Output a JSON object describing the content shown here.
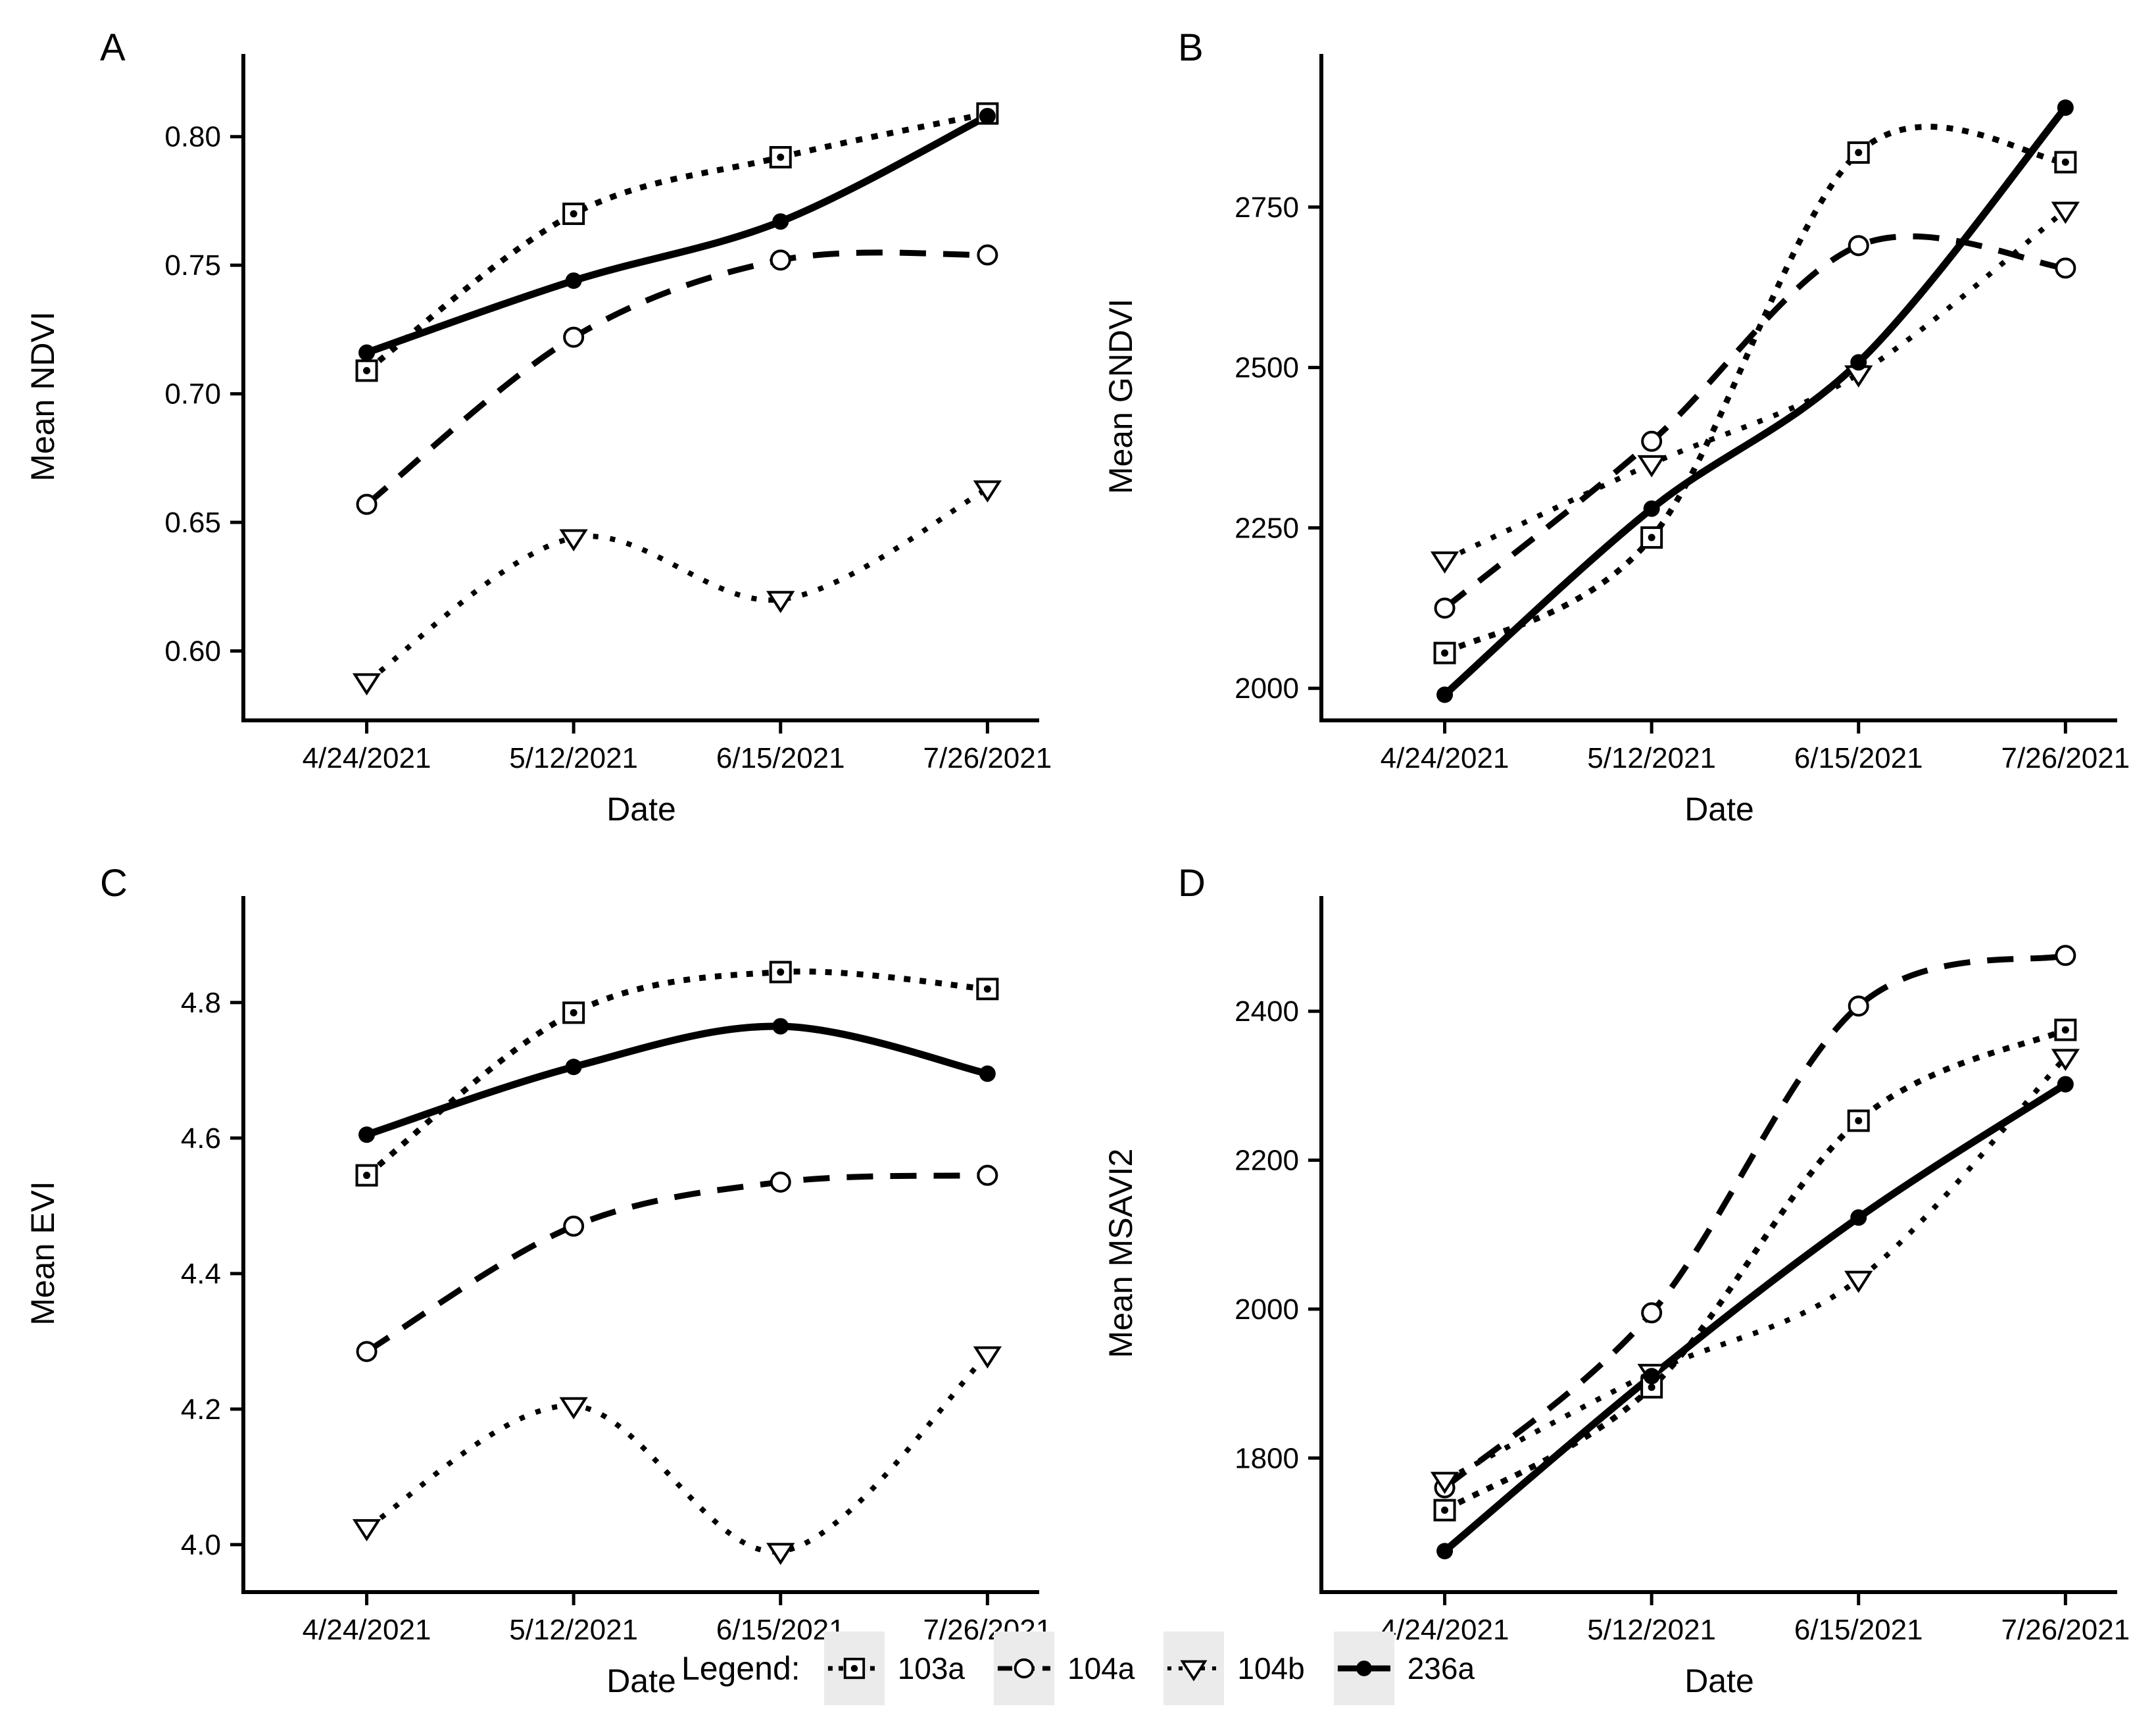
{
  "colors": {
    "foreground": "#000000",
    "background": "#ffffff",
    "legend_key_bg": "#ebebeb"
  },
  "legend": {
    "title": "Legend:",
    "items": [
      {
        "label": "103a",
        "line": "dotted-heavy",
        "marker": "square-dot"
      },
      {
        "label": "104a",
        "line": "dashed",
        "marker": "circle-open"
      },
      {
        "label": "104b",
        "line": "dotted-fine",
        "marker": "triangle-down-open"
      },
      {
        "label": "236a",
        "line": "solid",
        "marker": "circle-filled"
      }
    ]
  },
  "chart_data": [
    {
      "type": "line",
      "tag": "A",
      "title": "",
      "xlabel": "Date",
      "ylabel": "Mean NDVI",
      "grid": false,
      "legend_position": "bottom",
      "categories": [
        "4/24/2021",
        "5/12/2021",
        "6/15/2021",
        "7/26/2021"
      ],
      "ylim": [
        0.573,
        0.825
      ],
      "yticks": [
        0.6,
        0.65,
        0.7,
        0.75,
        0.8
      ],
      "ytick_labels": [
        "0.60",
        "0.65",
        "0.70",
        "0.75",
        "0.80"
      ],
      "series": [
        {
          "name": "103a",
          "line": "dotted-heavy",
          "marker": "square-dot",
          "values": [
            0.709,
            0.77,
            0.792,
            0.809
          ]
        },
        {
          "name": "104a",
          "line": "dashed",
          "marker": "circle-open",
          "values": [
            0.657,
            0.722,
            0.752,
            0.754
          ]
        },
        {
          "name": "104b",
          "line": "dotted-fine",
          "marker": "triangle-down-open",
          "values": [
            0.588,
            0.644,
            0.62,
            0.663
          ]
        },
        {
          "name": "236a",
          "line": "solid",
          "marker": "circle-filled",
          "values": [
            0.716,
            0.744,
            0.767,
            0.808
          ]
        }
      ]
    },
    {
      "type": "line",
      "tag": "B",
      "title": "",
      "xlabel": "Date",
      "ylabel": "Mean GNDVI",
      "grid": false,
      "legend_position": "bottom",
      "categories": [
        "4/24/2021",
        "5/12/2021",
        "6/15/2021",
        "7/26/2021"
      ],
      "ylim": [
        1950,
        2960
      ],
      "yticks": [
        2000,
        2250,
        2500,
        2750
      ],
      "ytick_labels": [
        "2000",
        "2250",
        "2500",
        "2750"
      ],
      "series": [
        {
          "name": "103a",
          "line": "dotted-heavy",
          "marker": "square-dot",
          "values": [
            2055,
            2235,
            2835,
            2820
          ]
        },
        {
          "name": "104a",
          "line": "dashed",
          "marker": "circle-open",
          "values": [
            2125,
            2385,
            2690,
            2655
          ]
        },
        {
          "name": "104b",
          "line": "dotted-fine",
          "marker": "triangle-down-open",
          "values": [
            2200,
            2350,
            2490,
            2745
          ]
        },
        {
          "name": "236a",
          "line": "solid",
          "marker": "circle-filled",
          "values": [
            1990,
            2280,
            2508,
            2905
          ]
        }
      ]
    },
    {
      "type": "line",
      "tag": "C",
      "title": "",
      "xlabel": "Date",
      "ylabel": "Mean EVI",
      "grid": false,
      "legend_position": "bottom",
      "categories": [
        "4/24/2021",
        "5/12/2021",
        "6/15/2021",
        "7/26/2021"
      ],
      "ylim": [
        3.93,
        4.93
      ],
      "yticks": [
        4.0,
        4.2,
        4.4,
        4.6,
        4.8
      ],
      "ytick_labels": [
        "4.0",
        "4.2",
        "4.4",
        "4.6",
        "4.8"
      ],
      "series": [
        {
          "name": "103a",
          "line": "dotted-heavy",
          "marker": "square-dot",
          "values": [
            4.545,
            4.785,
            4.845,
            4.82
          ]
        },
        {
          "name": "104a",
          "line": "dashed",
          "marker": "circle-open",
          "values": [
            4.285,
            4.47,
            4.535,
            4.545
          ]
        },
        {
          "name": "104b",
          "line": "dotted-fine",
          "marker": "triangle-down-open",
          "values": [
            4.025,
            4.205,
            3.99,
            4.28
          ]
        },
        {
          "name": "236a",
          "line": "solid",
          "marker": "circle-filled",
          "values": [
            4.605,
            4.705,
            4.765,
            4.695
          ]
        }
      ]
    },
    {
      "type": "line",
      "tag": "D",
      "title": "",
      "xlabel": "Date",
      "ylabel": "Mean MSAVI2",
      "grid": false,
      "legend_position": "bottom",
      "categories": [
        "4/24/2021",
        "5/12/2021",
        "6/15/2021",
        "7/26/2021"
      ],
      "ylim": [
        1620,
        2530
      ],
      "yticks": [
        1800,
        2000,
        2200,
        2400
      ],
      "ytick_labels": [
        "1800",
        "2000",
        "2200",
        "2400"
      ],
      "series": [
        {
          "name": "103a",
          "line": "dotted-heavy",
          "marker": "square-dot",
          "values": [
            1730,
            1895,
            2253,
            2375
          ]
        },
        {
          "name": "104a",
          "line": "dashed",
          "marker": "circle-open",
          "values": [
            1760,
            1995,
            2407,
            2475
          ]
        },
        {
          "name": "104b",
          "line": "dotted-fine",
          "marker": "triangle-down-open",
          "values": [
            1770,
            1915,
            2040,
            2338
          ]
        },
        {
          "name": "236a",
          "line": "solid",
          "marker": "circle-filled",
          "values": [
            1675,
            1910,
            2123,
            2302
          ]
        }
      ]
    }
  ]
}
